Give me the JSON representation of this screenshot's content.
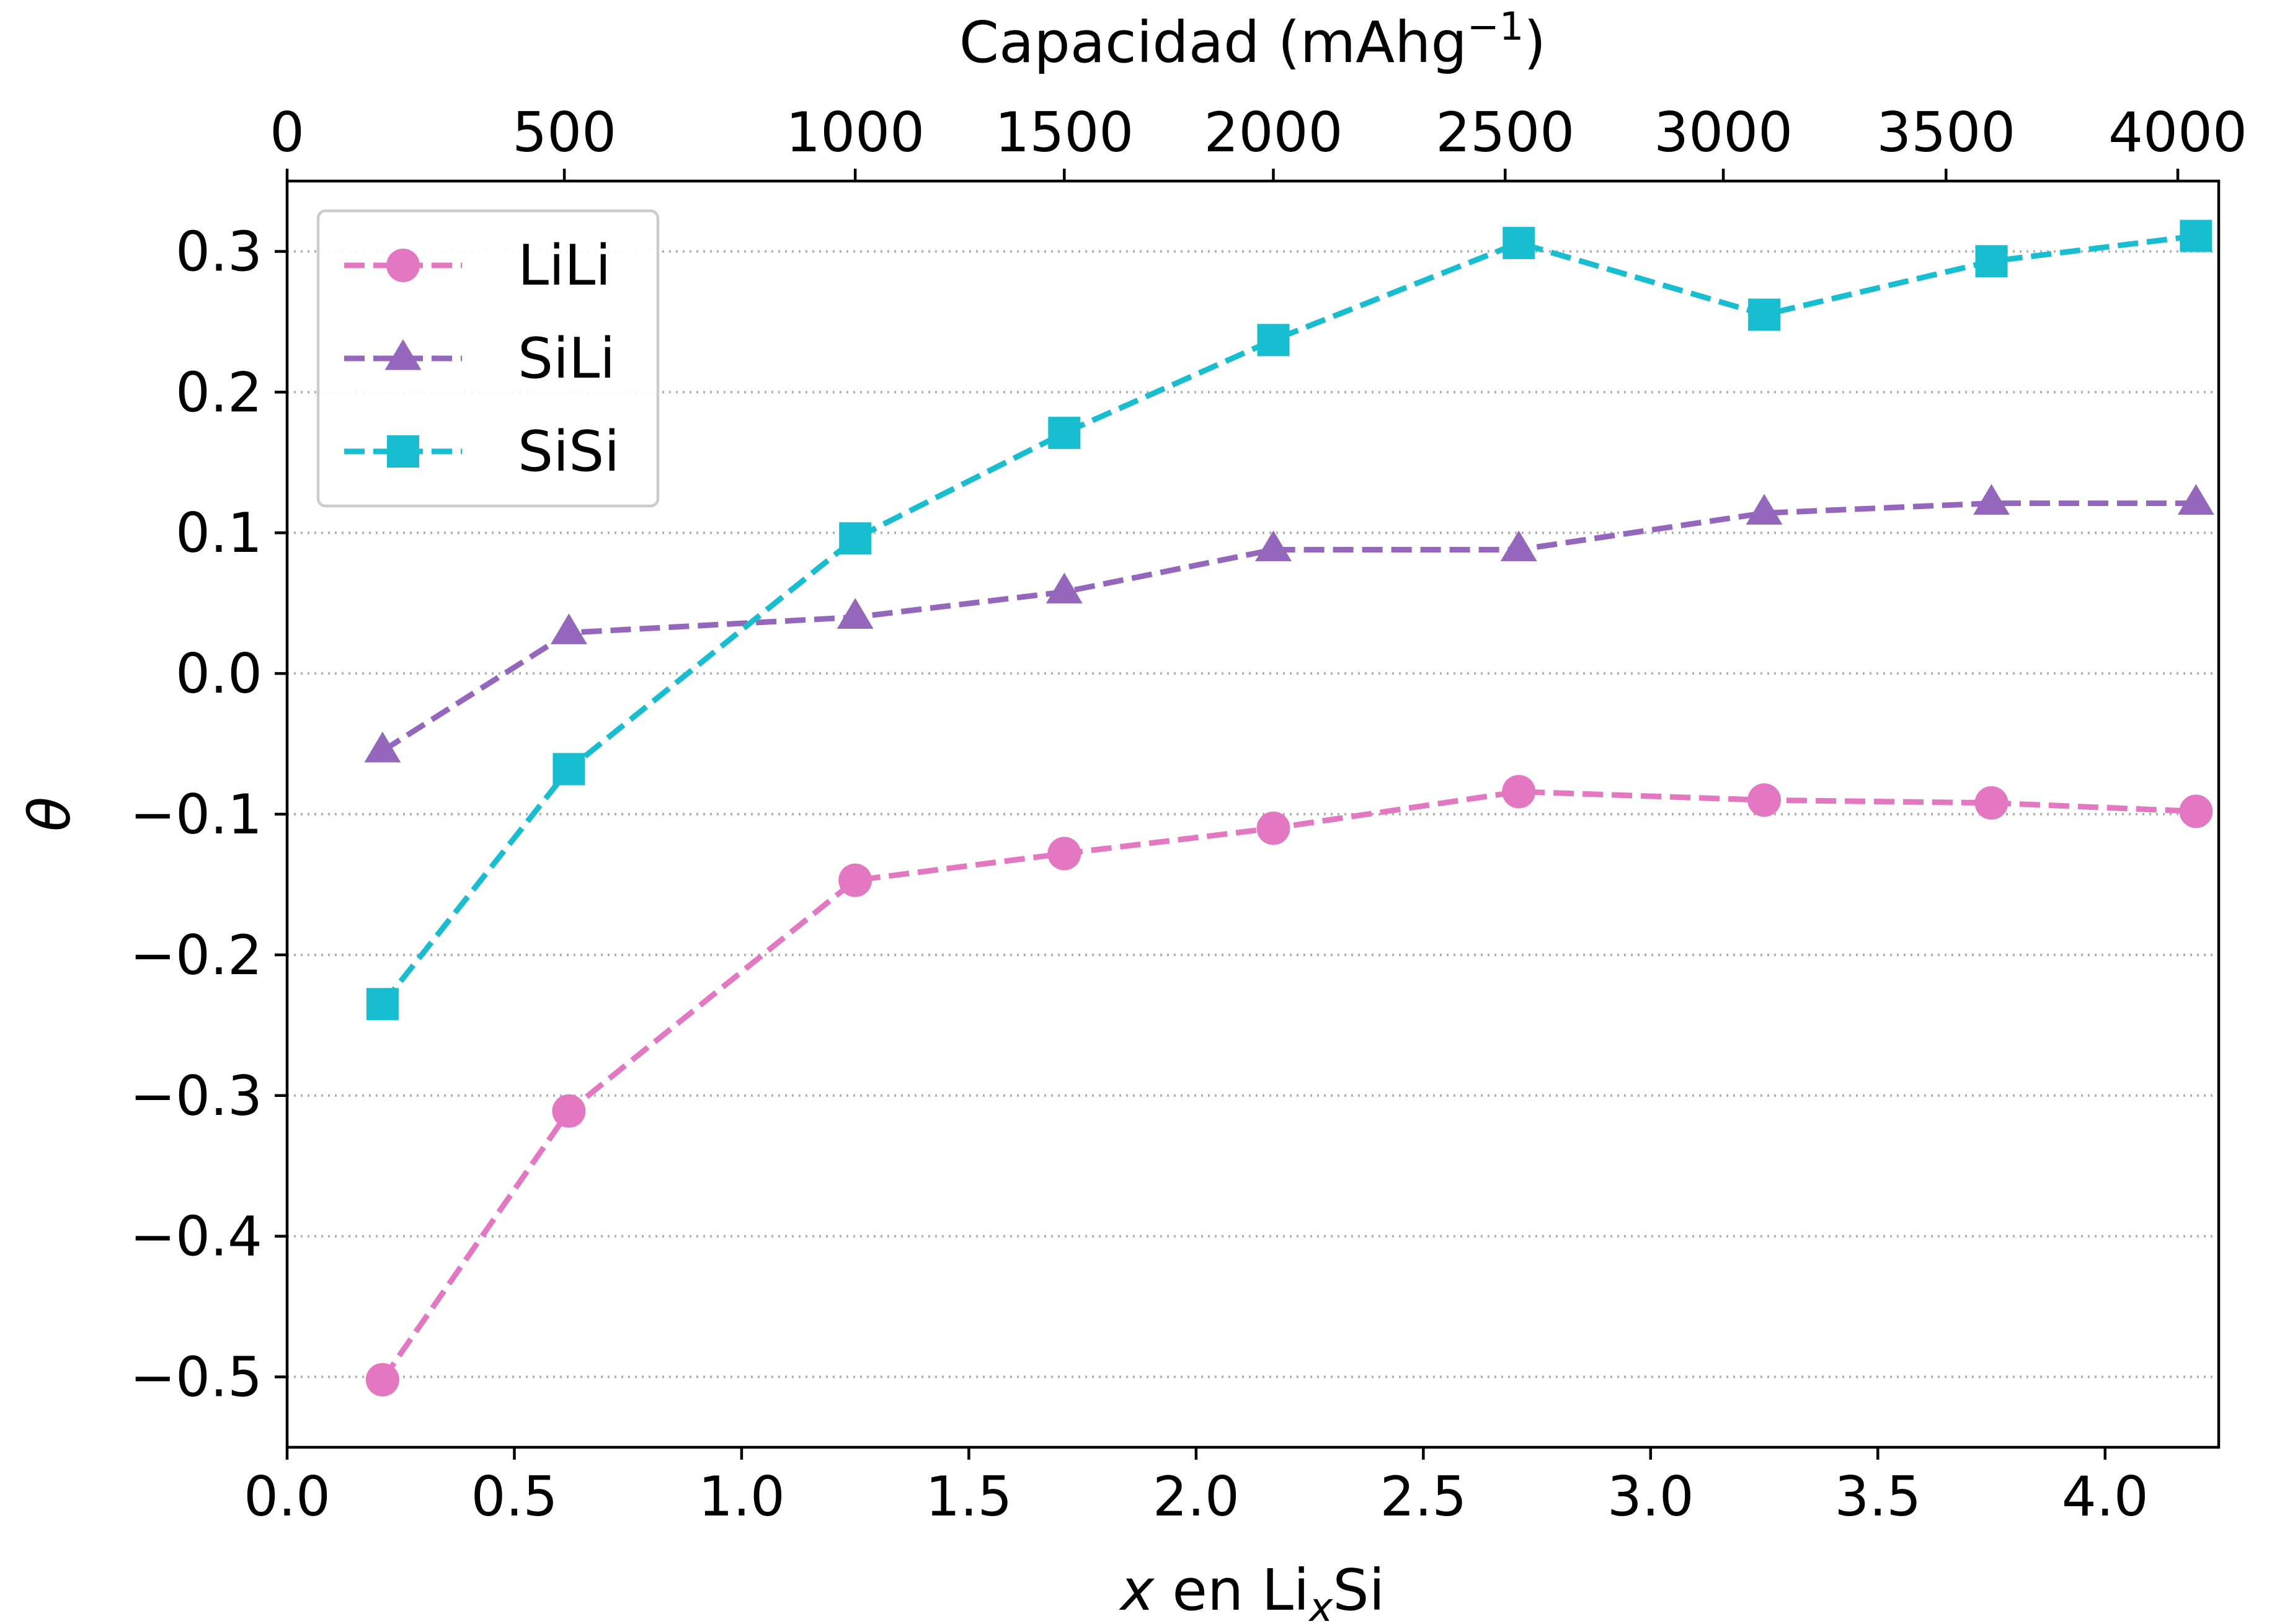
{
  "chart_data": {
    "type": "line",
    "x_axis": {
      "label_var": "x",
      "label_text": " en Li",
      "label_sub": "x",
      "label_tail": "Si",
      "range": [
        0.0,
        4.25
      ],
      "ticks": [
        0.0,
        0.5,
        1.0,
        1.5,
        2.0,
        2.5,
        3.0,
        3.5,
        4.0
      ],
      "tick_labels": [
        "0.0",
        "0.5",
        "1.0",
        "1.5",
        "2.0",
        "2.5",
        "3.0",
        "3.5",
        "4.0"
      ]
    },
    "top_axis": {
      "label_main": "Capacidad (mAhg",
      "label_sup": "−1",
      "label_close": ")",
      "ticks": [
        0,
        500,
        1000,
        1500,
        2000,
        2500,
        3000,
        3500,
        4000
      ],
      "tick_labels": [
        "0",
        "500",
        "1000",
        "1500",
        "2000",
        "2500",
        "3000",
        "3500",
        "4000"
      ],
      "ticks_at_x": [
        0.0,
        0.61,
        1.25,
        1.71,
        2.17,
        2.68,
        3.16,
        3.65,
        4.16
      ]
    },
    "y_axis": {
      "label": "θ",
      "range": [
        -0.55,
        0.35
      ],
      "ticks": [
        -0.5,
        -0.4,
        -0.3,
        -0.2,
        -0.1,
        0.0,
        0.1,
        0.2,
        0.3
      ],
      "tick_labels": [
        "−0.5",
        "−0.4",
        "−0.3",
        "−0.2",
        "−0.1",
        "0.0",
        "0.1",
        "0.2",
        "0.3"
      ]
    },
    "grid": "horizontal-dotted",
    "legend": {
      "position": "top-left"
    },
    "x": [
      0.21,
      0.62,
      1.25,
      1.71,
      2.17,
      2.71,
      3.25,
      3.75,
      4.2
    ],
    "series": [
      {
        "name": "LiLi",
        "color": "#e377c2",
        "marker": "circle",
        "values": [
          -0.502,
          -0.311,
          -0.147,
          -0.128,
          -0.11,
          -0.084,
          -0.09,
          -0.092,
          -0.098
        ]
      },
      {
        "name": "SiLi",
        "color": "#9467bd",
        "marker": "triangle",
        "values": [
          -0.055,
          0.029,
          0.04,
          0.058,
          0.088,
          0.088,
          0.114,
          0.121,
          0.121
        ]
      },
      {
        "name": "SiSi",
        "color": "#17becf",
        "marker": "square",
        "values": [
          -0.235,
          -0.068,
          0.096,
          0.171,
          0.237,
          0.306,
          0.255,
          0.293,
          0.311
        ]
      }
    ]
  }
}
